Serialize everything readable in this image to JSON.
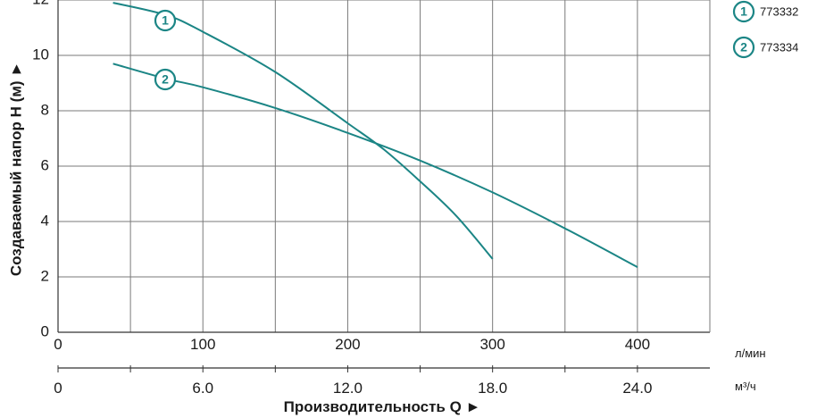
{
  "chart_data": {
    "type": "line",
    "ylabel": "Создаваемый напор H (м) ►",
    "xlabel": "Производительность Q ►",
    "ylim": [
      0,
      12
    ],
    "yticks": [
      "0",
      "2",
      "4",
      "6",
      "8",
      "10",
      "12"
    ],
    "xlim_lmin": [
      0,
      450
    ],
    "xticks_lmin": [
      "0",
      "100",
      "200",
      "300",
      "400"
    ],
    "xticks_m3h": [
      "0",
      "6.0",
      "12.0",
      "18.0",
      "24.0"
    ],
    "unit_lmin": "л/мин",
    "unit_m3h": "м³/ч",
    "grid": true,
    "legend_position": "top-right",
    "colors": {
      "line": "#1b8585",
      "grid": "#7a7a7a",
      "axis": "#333333"
    },
    "series": [
      {
        "name": "773332",
        "marker": "1",
        "x": [
          38,
          75,
          100,
          150,
          200,
          225,
          250,
          275,
          300
        ],
        "y": [
          11.9,
          11.45,
          10.85,
          9.4,
          7.55,
          6.6,
          5.45,
          4.2,
          2.65
        ]
      },
      {
        "name": "773334",
        "marker": "2",
        "x": [
          38,
          75,
          100,
          150,
          200,
          250,
          300,
          350,
          400
        ],
        "y": [
          9.7,
          9.15,
          8.85,
          8.1,
          7.2,
          6.2,
          5.05,
          3.75,
          2.35
        ]
      }
    ]
  }
}
